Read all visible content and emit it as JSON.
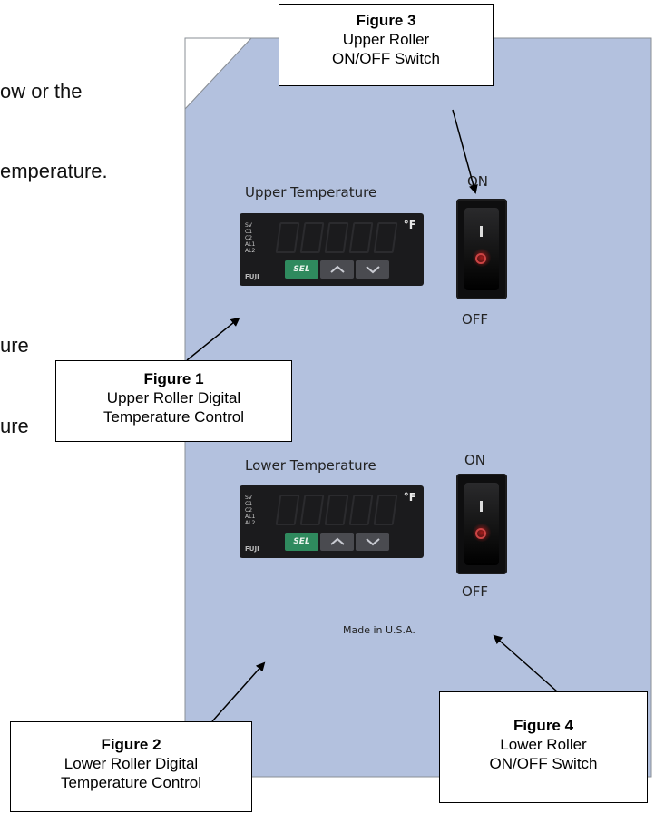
{
  "background_text": {
    "line1": "ow or the",
    "line2": "emperature.",
    "line3": "ure",
    "line4": "ure"
  },
  "panel": {
    "color": "#b3c1de",
    "upper_label": "Upper Temperature",
    "lower_label": "Lower Temperature",
    "made_in": "Made in U.S.A.",
    "on_upper": "ON",
    "off_upper": "OFF",
    "on_lower": "ON",
    "off_lower": "OFF"
  },
  "controller": {
    "led_labels": [
      "SV",
      "C1",
      "C2",
      "AL1",
      "AL2"
    ],
    "unit": "°F",
    "brand": "FUJI",
    "sel_label": "SEL"
  },
  "callouts": {
    "fig1": {
      "title": "Figure 1",
      "line1": "Upper Roller Digital",
      "line2": "Temperature Control"
    },
    "fig2": {
      "title": "Figure 2",
      "line1": "Lower Roller Digital",
      "line2": "Temperature Control"
    },
    "fig3": {
      "title": "Figure 3",
      "line1": "Upper Roller",
      "line2": "ON/OFF Switch"
    },
    "fig4": {
      "title": "Figure 4",
      "line1": "Lower Roller",
      "line2": "ON/OFF Switch"
    }
  }
}
